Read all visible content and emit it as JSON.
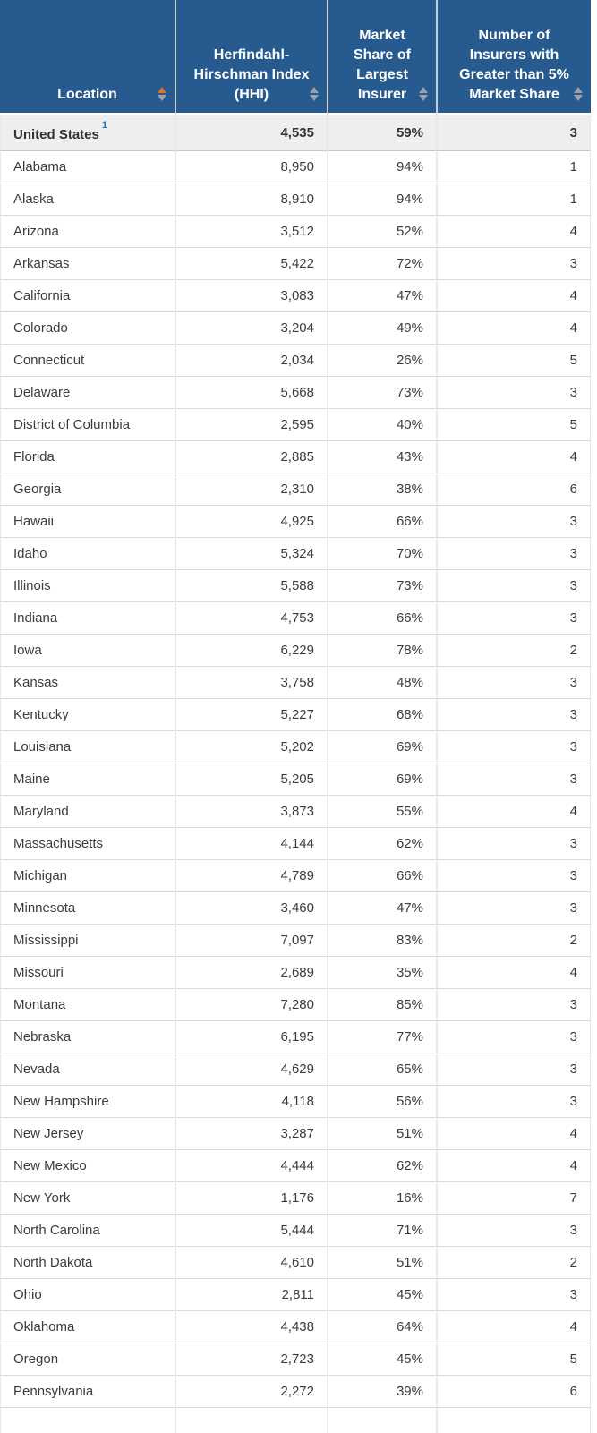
{
  "colors": {
    "header_bg": "#275A8E",
    "header_text": "#FFFFFF",
    "header_separator": "#C8CED5",
    "sort_inactive": "#9AA1A8",
    "sort_active": "#DD7327",
    "summary_row_bg": "#EEEEEE",
    "summary_border": "#C9C9C9",
    "row_text": "#3B3B3B",
    "footnote_blue": "#1E7AC9",
    "border": "#DBDBDB",
    "border_vertical": "#E9E9E9"
  },
  "table": {
    "columns": [
      {
        "id": "location",
        "label": "Location",
        "sort_state": "ascending"
      },
      {
        "id": "hhi",
        "label": "Herfindahl-Hirschman Index (HHI)",
        "sort_state": "none"
      },
      {
        "id": "share",
        "label": "Market Share of Largest Insurer",
        "sort_state": "none"
      },
      {
        "id": "insurers",
        "label": "Number of Insurers with Greater than 5% Market Share",
        "sort_state": "none"
      }
    ],
    "summary_row": {
      "location": "United States",
      "footnote_marker": "1",
      "hhi": "4,535",
      "share": "59%",
      "insurers": "3"
    },
    "rows": [
      {
        "location": "Alabama",
        "hhi": "8,950",
        "share": "94%",
        "insurers": "1"
      },
      {
        "location": "Alaska",
        "hhi": "8,910",
        "share": "94%",
        "insurers": "1"
      },
      {
        "location": "Arizona",
        "hhi": "3,512",
        "share": "52%",
        "insurers": "4"
      },
      {
        "location": "Arkansas",
        "hhi": "5,422",
        "share": "72%",
        "insurers": "3"
      },
      {
        "location": "California",
        "hhi": "3,083",
        "share": "47%",
        "insurers": "4"
      },
      {
        "location": "Colorado",
        "hhi": "3,204",
        "share": "49%",
        "insurers": "4"
      },
      {
        "location": "Connecticut",
        "hhi": "2,034",
        "share": "26%",
        "insurers": "5"
      },
      {
        "location": "Delaware",
        "hhi": "5,668",
        "share": "73%",
        "insurers": "3"
      },
      {
        "location": "District of Columbia",
        "hhi": "2,595",
        "share": "40%",
        "insurers": "5"
      },
      {
        "location": "Florida",
        "hhi": "2,885",
        "share": "43%",
        "insurers": "4"
      },
      {
        "location": "Georgia",
        "hhi": "2,310",
        "share": "38%",
        "insurers": "6"
      },
      {
        "location": "Hawaii",
        "hhi": "4,925",
        "share": "66%",
        "insurers": "3"
      },
      {
        "location": "Idaho",
        "hhi": "5,324",
        "share": "70%",
        "insurers": "3"
      },
      {
        "location": "Illinois",
        "hhi": "5,588",
        "share": "73%",
        "insurers": "3"
      },
      {
        "location": "Indiana",
        "hhi": "4,753",
        "share": "66%",
        "insurers": "3"
      },
      {
        "location": "Iowa",
        "hhi": "6,229",
        "share": "78%",
        "insurers": "2"
      },
      {
        "location": "Kansas",
        "hhi": "3,758",
        "share": "48%",
        "insurers": "3"
      },
      {
        "location": "Kentucky",
        "hhi": "5,227",
        "share": "68%",
        "insurers": "3"
      },
      {
        "location": "Louisiana",
        "hhi": "5,202",
        "share": "69%",
        "insurers": "3"
      },
      {
        "location": "Maine",
        "hhi": "5,205",
        "share": "69%",
        "insurers": "3"
      },
      {
        "location": "Maryland",
        "hhi": "3,873",
        "share": "55%",
        "insurers": "4"
      },
      {
        "location": "Massachusetts",
        "hhi": "4,144",
        "share": "62%",
        "insurers": "3"
      },
      {
        "location": "Michigan",
        "hhi": "4,789",
        "share": "66%",
        "insurers": "3"
      },
      {
        "location": "Minnesota",
        "hhi": "3,460",
        "share": "47%",
        "insurers": "3"
      },
      {
        "location": "Mississippi",
        "hhi": "7,097",
        "share": "83%",
        "insurers": "2"
      },
      {
        "location": "Missouri",
        "hhi": "2,689",
        "share": "35%",
        "insurers": "4"
      },
      {
        "location": "Montana",
        "hhi": "7,280",
        "share": "85%",
        "insurers": "3"
      },
      {
        "location": "Nebraska",
        "hhi": "6,195",
        "share": "77%",
        "insurers": "3"
      },
      {
        "location": "Nevada",
        "hhi": "4,629",
        "share": "65%",
        "insurers": "3"
      },
      {
        "location": "New Hampshire",
        "hhi": "4,118",
        "share": "56%",
        "insurers": "3"
      },
      {
        "location": "New Jersey",
        "hhi": "3,287",
        "share": "51%",
        "insurers": "4"
      },
      {
        "location": "New Mexico",
        "hhi": "4,444",
        "share": "62%",
        "insurers": "4"
      },
      {
        "location": "New York",
        "hhi": "1,176",
        "share": "16%",
        "insurers": "7"
      },
      {
        "location": "North Carolina",
        "hhi": "5,444",
        "share": "71%",
        "insurers": "3"
      },
      {
        "location": "North Dakota",
        "hhi": "4,610",
        "share": "51%",
        "insurers": "2"
      },
      {
        "location": "Ohio",
        "hhi": "2,811",
        "share": "45%",
        "insurers": "3"
      },
      {
        "location": "Oklahoma",
        "hhi": "4,438",
        "share": "64%",
        "insurers": "4"
      },
      {
        "location": "Oregon",
        "hhi": "2,723",
        "share": "45%",
        "insurers": "5"
      },
      {
        "location": "Pennsylvania",
        "hhi": "2,272",
        "share": "39%",
        "insurers": "6"
      }
    ]
  },
  "chart_data": {
    "type": "table",
    "columns": [
      "Location",
      "Herfindahl-Hirschman Index (HHI)",
      "Market Share of Largest Insurer",
      "Number of Insurers with Greater than 5% Market Share"
    ],
    "sort": {
      "column": "Location",
      "direction": "ascending"
    },
    "rows": [
      [
        "United States",
        4535,
        "59%",
        3
      ],
      [
        "Alabama",
        8950,
        "94%",
        1
      ],
      [
        "Alaska",
        8910,
        "94%",
        1
      ],
      [
        "Arizona",
        3512,
        "52%",
        4
      ],
      [
        "Arkansas",
        5422,
        "72%",
        3
      ],
      [
        "California",
        3083,
        "47%",
        4
      ],
      [
        "Colorado",
        3204,
        "49%",
        4
      ],
      [
        "Connecticut",
        2034,
        "26%",
        5
      ],
      [
        "Delaware",
        5668,
        "73%",
        3
      ],
      [
        "District of Columbia",
        2595,
        "40%",
        5
      ],
      [
        "Florida",
        2885,
        "43%",
        4
      ],
      [
        "Georgia",
        2310,
        "38%",
        6
      ],
      [
        "Hawaii",
        4925,
        "66%",
        3
      ],
      [
        "Idaho",
        5324,
        "70%",
        3
      ],
      [
        "Illinois",
        5588,
        "73%",
        3
      ],
      [
        "Indiana",
        4753,
        "66%",
        3
      ],
      [
        "Iowa",
        6229,
        "78%",
        2
      ],
      [
        "Kansas",
        3758,
        "48%",
        3
      ],
      [
        "Kentucky",
        5227,
        "68%",
        3
      ],
      [
        "Louisiana",
        5202,
        "69%",
        3
      ],
      [
        "Maine",
        5205,
        "69%",
        3
      ],
      [
        "Maryland",
        3873,
        "55%",
        4
      ],
      [
        "Massachusetts",
        4144,
        "62%",
        3
      ],
      [
        "Michigan",
        4789,
        "66%",
        3
      ],
      [
        "Minnesota",
        3460,
        "47%",
        3
      ],
      [
        "Mississippi",
        7097,
        "83%",
        2
      ],
      [
        "Missouri",
        2689,
        "35%",
        4
      ],
      [
        "Montana",
        7280,
        "85%",
        3
      ],
      [
        "Nebraska",
        6195,
        "77%",
        3
      ],
      [
        "Nevada",
        4629,
        "65%",
        3
      ],
      [
        "New Hampshire",
        4118,
        "56%",
        3
      ],
      [
        "New Jersey",
        3287,
        "51%",
        4
      ],
      [
        "New Mexico",
        4444,
        "62%",
        4
      ],
      [
        "New York",
        1176,
        "16%",
        7
      ],
      [
        "North Carolina",
        5444,
        "71%",
        3
      ],
      [
        "North Dakota",
        4610,
        "51%",
        2
      ],
      [
        "Ohio",
        2811,
        "45%",
        3
      ],
      [
        "Oklahoma",
        4438,
        "64%",
        4
      ],
      [
        "Oregon",
        2723,
        "45%",
        5
      ],
      [
        "Pennsylvania",
        2272,
        "39%",
        6
      ]
    ]
  }
}
